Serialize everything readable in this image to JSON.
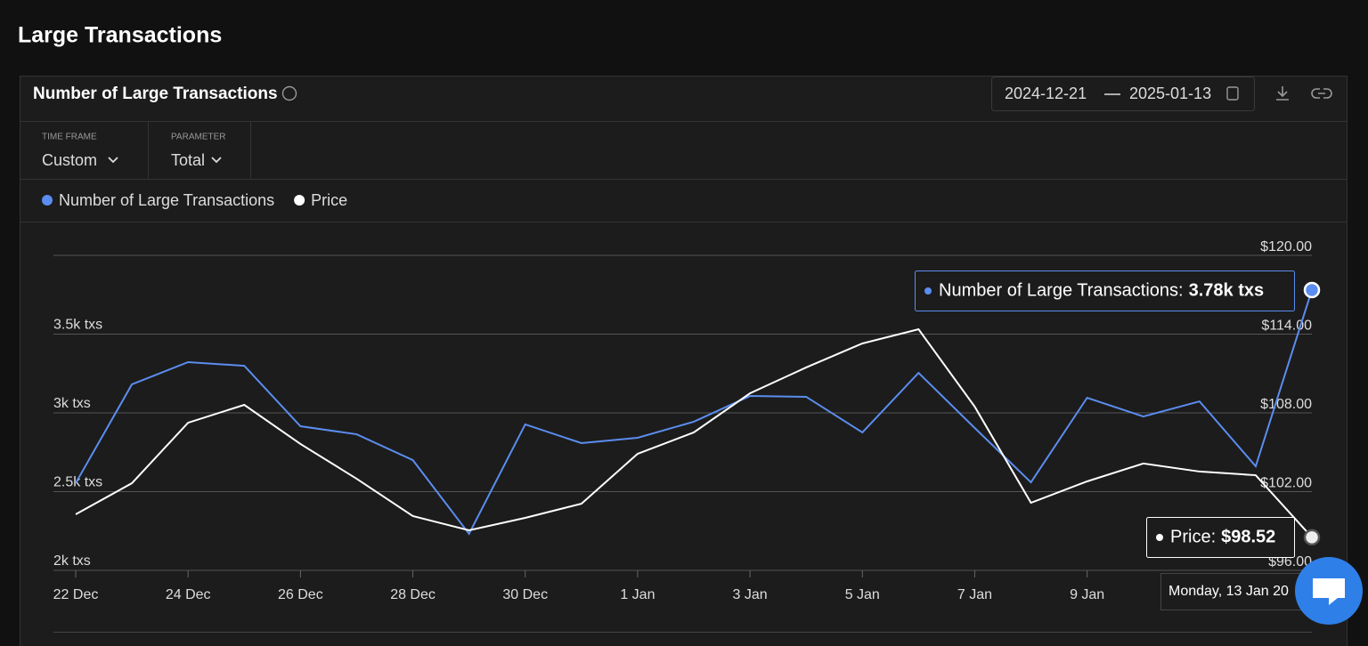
{
  "header": {
    "title": "Large Transactions"
  },
  "card": {
    "title": "Number of Large Transactions",
    "date_from": "2024-12-21",
    "date_to": "2025-01-13",
    "filters": [
      {
        "label": "TIME FRAME",
        "value": "Custom"
      },
      {
        "label": "PARAMETER",
        "value": "Total"
      }
    ]
  },
  "chart_data": {
    "type": "line",
    "categories": [
      "22 Dec",
      null,
      "24 Dec",
      null,
      "26 Dec",
      null,
      "28 Dec",
      null,
      "30 Dec",
      null,
      "1 Jan",
      null,
      "3 Jan",
      null,
      "5 Jan",
      null,
      "7 Jan",
      null,
      "9 Jan",
      null,
      null,
      null,
      null
    ],
    "series": [
      {
        "name": "Number of Large Transactions",
        "color": "#5b8def",
        "values": [
          2554,
          3181,
          3322,
          3299,
          2915,
          2864,
          2700,
          2232,
          2927,
          2808,
          2842,
          2944,
          3107,
          3102,
          2876,
          3254,
          2904,
          2559,
          3096,
          2977,
          3073,
          2661,
          3780
        ]
      },
      {
        "name": "Price",
        "color": "#ffffff",
        "axis": "y2",
        "values": [
          100.27,
          102.64,
          107.25,
          108.61,
          105.63,
          102.98,
          100.14,
          99.05,
          100.0,
          101.08,
          104.88,
          106.51,
          109.49,
          111.46,
          113.29,
          114.37,
          108.47,
          101.15,
          102.78,
          104.14,
          103.53,
          103.25,
          98.52
        ]
      }
    ],
    "ylim": [
      2000,
      4000
    ],
    "yticks": [
      {
        "value": 2000,
        "label": "2k txs"
      },
      {
        "value": 2500,
        "label": "2.5k txs"
      },
      {
        "value": 3000,
        "label": "3k txs"
      },
      {
        "value": 3500,
        "label": "3.5k txs"
      }
    ],
    "y2lim": [
      96,
      120
    ],
    "y2ticks": [
      {
        "value": 96,
        "label": "$96.00"
      },
      {
        "value": 102,
        "label": "$102.00"
      },
      {
        "value": 108,
        "label": "$108.00"
      },
      {
        "value": 114,
        "label": "$114.00"
      },
      {
        "value": 120,
        "label": "$120.00"
      }
    ],
    "grid": true,
    "tooltip": {
      "date": "Monday, 13 Jan 20",
      "entries": [
        {
          "label": "Number of Large Transactions:",
          "value": "3.78k txs"
        },
        {
          "label": "Price:",
          "value": "$98.52"
        }
      ]
    }
  }
}
